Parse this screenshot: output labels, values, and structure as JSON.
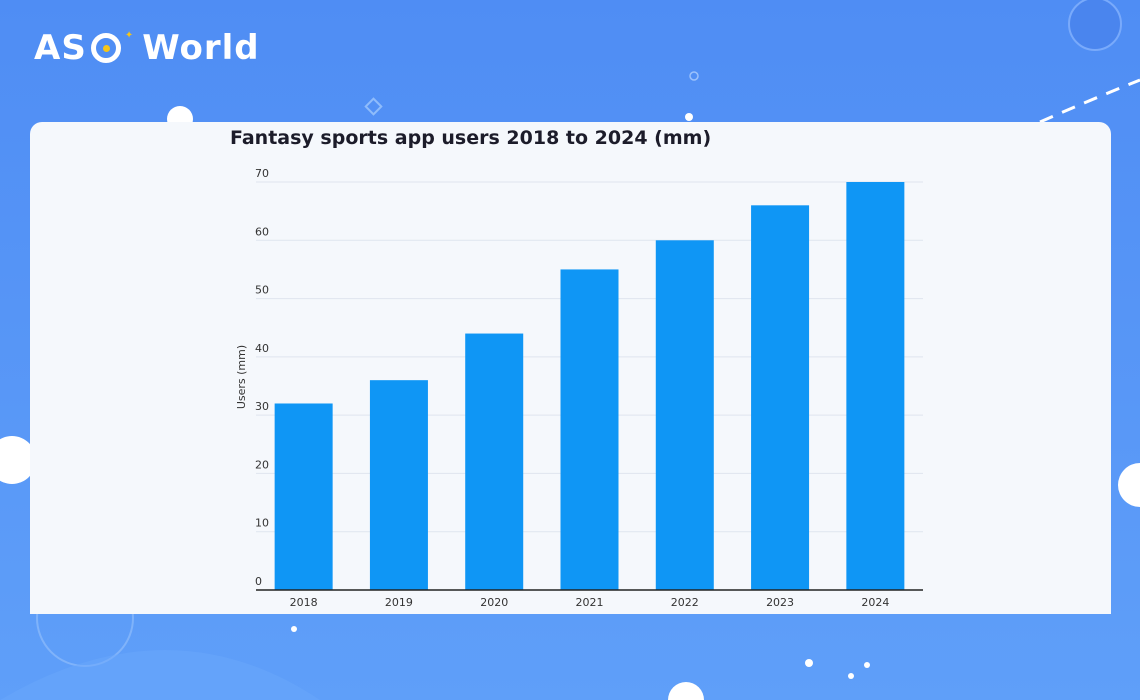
{
  "brand": {
    "logo_text_left": "AS",
    "logo_text_right": "World",
    "accent_color": "#f5c518"
  },
  "chart_data": {
    "type": "bar",
    "title": "Fantasy sports app users 2018 to 2024 (mm)",
    "xlabel": "",
    "ylabel": "Users (mm)",
    "categories": [
      "2018",
      "2019",
      "2020",
      "2021",
      "2022",
      "2023",
      "2024"
    ],
    "values": [
      32,
      36,
      44,
      55,
      60,
      66,
      70
    ],
    "ylim": [
      0,
      70
    ],
    "yticks": [
      0,
      10,
      20,
      30,
      40,
      50,
      60,
      70
    ],
    "grid": true,
    "bar_color": "#0f96f5"
  }
}
